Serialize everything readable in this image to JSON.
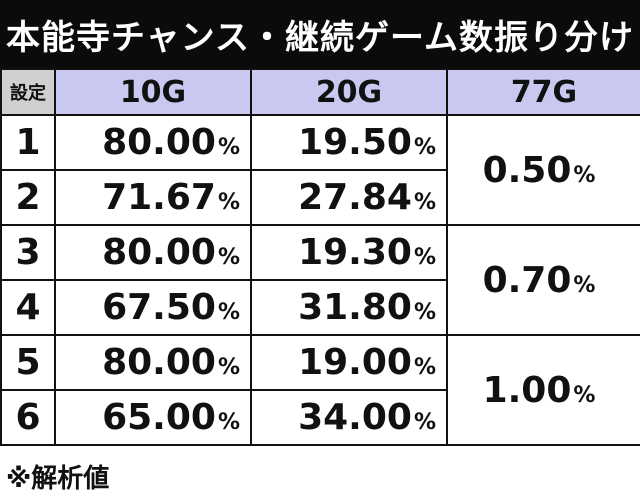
{
  "title": "本能寺チャンス・継続ゲーム数振り分け",
  "headers": {
    "setting": "設定",
    "col1": "10G",
    "col2": "20G",
    "col3": "77G"
  },
  "percent_sign": "%",
  "rows": [
    {
      "setting": "1",
      "g10": "80.00",
      "g20": "19.50"
    },
    {
      "setting": "2",
      "g10": "71.67",
      "g20": "27.84"
    },
    {
      "setting": "3",
      "g10": "80.00",
      "g20": "19.30"
    },
    {
      "setting": "4",
      "g10": "67.50",
      "g20": "31.80"
    },
    {
      "setting": "5",
      "g10": "80.00",
      "g20": "19.00"
    },
    {
      "setting": "6",
      "g10": "65.00",
      "g20": "34.00"
    }
  ],
  "g77": [
    "0.50",
    "0.70",
    "1.00"
  ],
  "footnote": "※解析値"
}
